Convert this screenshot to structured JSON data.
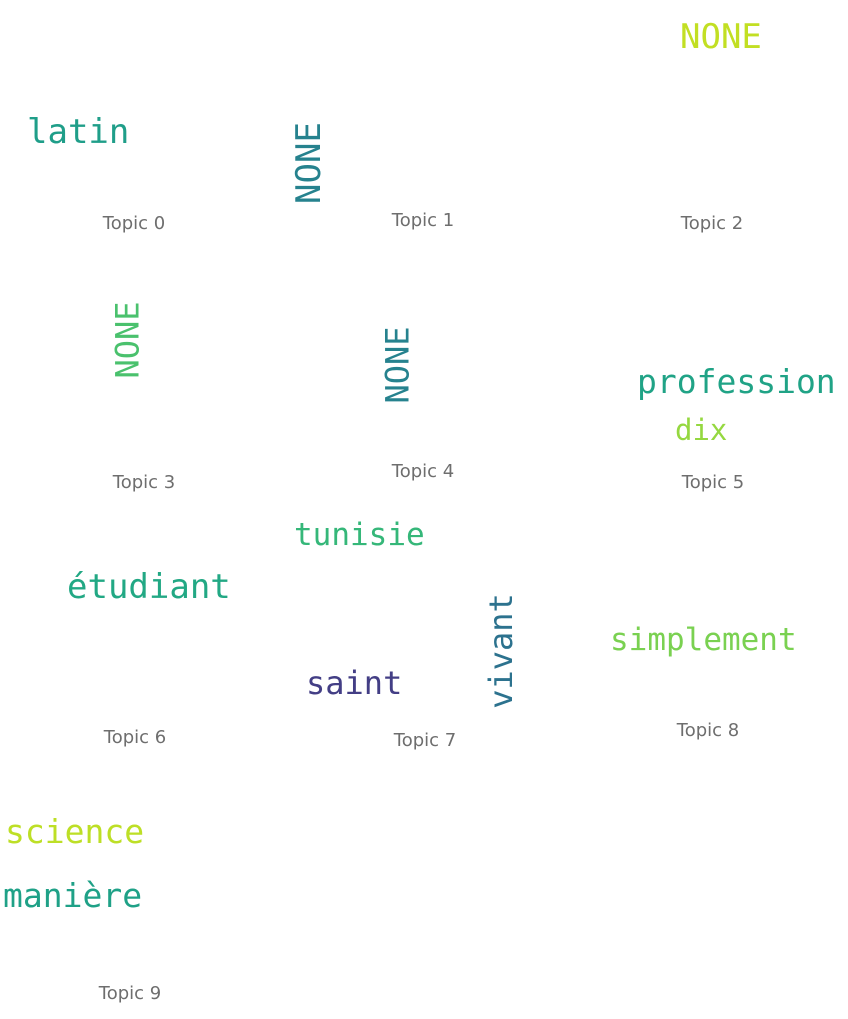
{
  "topics": [
    {
      "label": "Topic 0",
      "words": [
        {
          "text": "latin",
          "color": "#1f9e89"
        }
      ]
    },
    {
      "label": "Topic 1",
      "words": [
        {
          "text": "NONE",
          "color": "#26828e"
        }
      ]
    },
    {
      "label": "Topic 2",
      "words": [
        {
          "text": "NONE",
          "color": "#c2df23"
        }
      ]
    },
    {
      "label": "Topic 3",
      "words": [
        {
          "text": "NONE",
          "color": "#4ac16d"
        }
      ]
    },
    {
      "label": "Topic 4",
      "words": [
        {
          "text": "NONE",
          "color": "#26828e"
        }
      ]
    },
    {
      "label": "Topic 5",
      "words": [
        {
          "text": "profession",
          "color": "#20a386"
        },
        {
          "text": "dix",
          "color": "#95d840"
        }
      ]
    },
    {
      "label": "Topic 6",
      "words": [
        {
          "text": "étudiant",
          "color": "#22a884"
        }
      ]
    },
    {
      "label": "Topic 7",
      "words": [
        {
          "text": "tunisie",
          "color": "#35b779"
        },
        {
          "text": "vivant",
          "color": "#2c728e"
        },
        {
          "text": "saint",
          "color": "#433e85"
        }
      ]
    },
    {
      "label": "Topic 8",
      "words": [
        {
          "text": "simplement",
          "color": "#7ad151"
        }
      ]
    },
    {
      "label": "Topic 9",
      "words": [
        {
          "text": "science",
          "color": "#bddf26"
        },
        {
          "text": "manière",
          "color": "#1fa187"
        }
      ]
    }
  ]
}
